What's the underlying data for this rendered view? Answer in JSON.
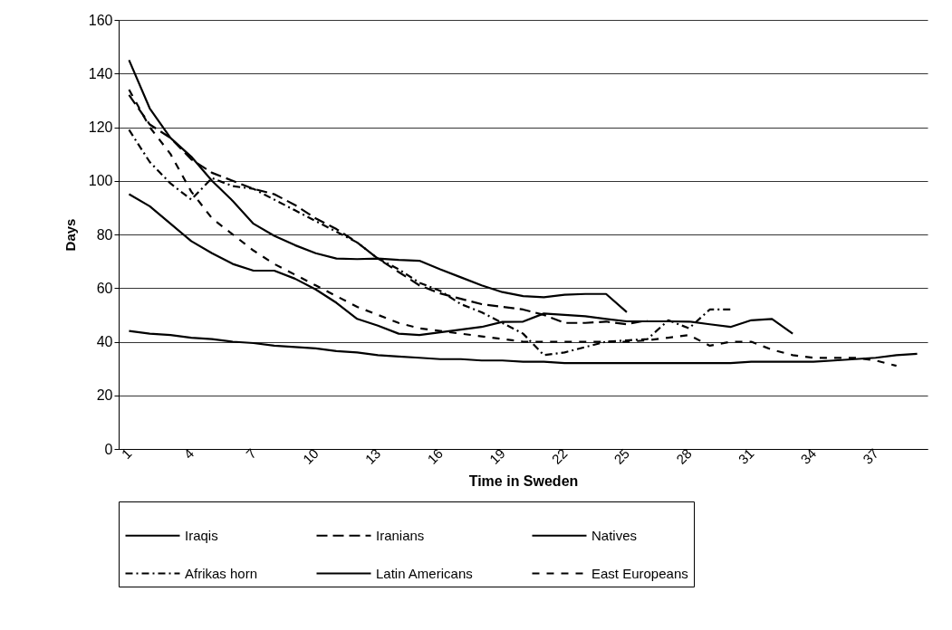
{
  "chart_data": {
    "type": "line",
    "xlabel": "Time in Sweden",
    "ylabel": "Days",
    "categories": [
      "1",
      null,
      null,
      "4",
      null,
      null,
      "7",
      null,
      null,
      "10",
      null,
      null,
      "13",
      null,
      null,
      "16",
      null,
      null,
      "19",
      null,
      null,
      "22",
      null,
      null,
      "25",
      null,
      null,
      "28",
      null,
      null,
      "31",
      null,
      null,
      "34",
      null,
      null,
      "37",
      null,
      null
    ],
    "ylim": [
      0,
      160
    ],
    "yticks": [
      0,
      20,
      40,
      60,
      80,
      100,
      120,
      140,
      160
    ],
    "grid": "y",
    "legend": "bottom",
    "marker": "none",
    "series": [
      {
        "name": "Iraqis",
        "color": "#000000",
        "line_style": "solid",
        "values": [
          145,
          127,
          116,
          109,
          100,
          92.5,
          84,
          79.5,
          76,
          73,
          71,
          70.8,
          71,
          70.5,
          70.2,
          67,
          64,
          61,
          58.5,
          57,
          56.6,
          57.5,
          57.8,
          57.8,
          51,
          null,
          null,
          null,
          null,
          null,
          null,
          null,
          null,
          null,
          null,
          null,
          null,
          null,
          null
        ]
      },
      {
        "name": "Iranians",
        "color": "#000000",
        "line_style": "dashed",
        "values": [
          132,
          121,
          116,
          108,
          103,
          100,
          97,
          95,
          91,
          86,
          82,
          77,
          71,
          66,
          61,
          58,
          56,
          54,
          53,
          52,
          50,
          47,
          47,
          47.5,
          46.5,
          48,
          null,
          null,
          null,
          null,
          null,
          null,
          null,
          null,
          null,
          null,
          null,
          null,
          null
        ]
      },
      {
        "name": "Natives",
        "color": "#000000",
        "line_style": "solid",
        "values": [
          44,
          43,
          42.5,
          41.5,
          41,
          40,
          39.5,
          38.5,
          38,
          37.5,
          36.5,
          36,
          35,
          34.5,
          34,
          33.5,
          33.5,
          33,
          33,
          32.5,
          32.5,
          32,
          32,
          32,
          32,
          32,
          32,
          32,
          32,
          32,
          32.5,
          32.5,
          32.5,
          32.5,
          33,
          33.5,
          34,
          35,
          35.5
        ]
      },
      {
        "name": "Afrikas horn",
        "color": "#000000",
        "line_style": "dashed",
        "values": [
          119,
          107,
          99,
          93,
          101,
          98,
          97,
          93,
          89,
          85,
          81,
          77,
          71,
          67,
          62,
          59,
          54,
          51,
          47,
          43,
          35,
          36,
          38,
          40,
          40.5,
          41,
          48,
          45,
          52,
          52,
          null,
          null,
          null,
          null,
          null,
          null,
          null,
          null,
          null
        ]
      },
      {
        "name": "Latin Americans",
        "color": "#000000",
        "line_style": "solid",
        "values": [
          95,
          90.5,
          84,
          77.5,
          73,
          69,
          66.5,
          66.5,
          63.5,
          59.5,
          54.5,
          48.5,
          46,
          43,
          42.5,
          43.5,
          44.5,
          45.5,
          47.4,
          47.5,
          50.5,
          50,
          49.5,
          48.5,
          47.6,
          47.6,
          47.6,
          47.5,
          46.5,
          45.5,
          48,
          48.5,
          43,
          null,
          null,
          null,
          null,
          null,
          null
        ]
      },
      {
        "name": "East Europeans",
        "color": "#000000",
        "line_style": "dashed",
        "values": [
          134,
          120,
          110,
          96,
          86,
          80,
          74,
          69,
          65,
          61,
          57,
          53,
          50,
          47,
          45,
          44,
          43,
          42,
          41,
          40,
          40,
          40,
          40,
          40,
          40,
          40.5,
          41.5,
          42.5,
          38.5,
          40,
          40,
          37,
          35,
          34,
          34,
          34,
          33,
          31,
          null
        ]
      }
    ]
  }
}
